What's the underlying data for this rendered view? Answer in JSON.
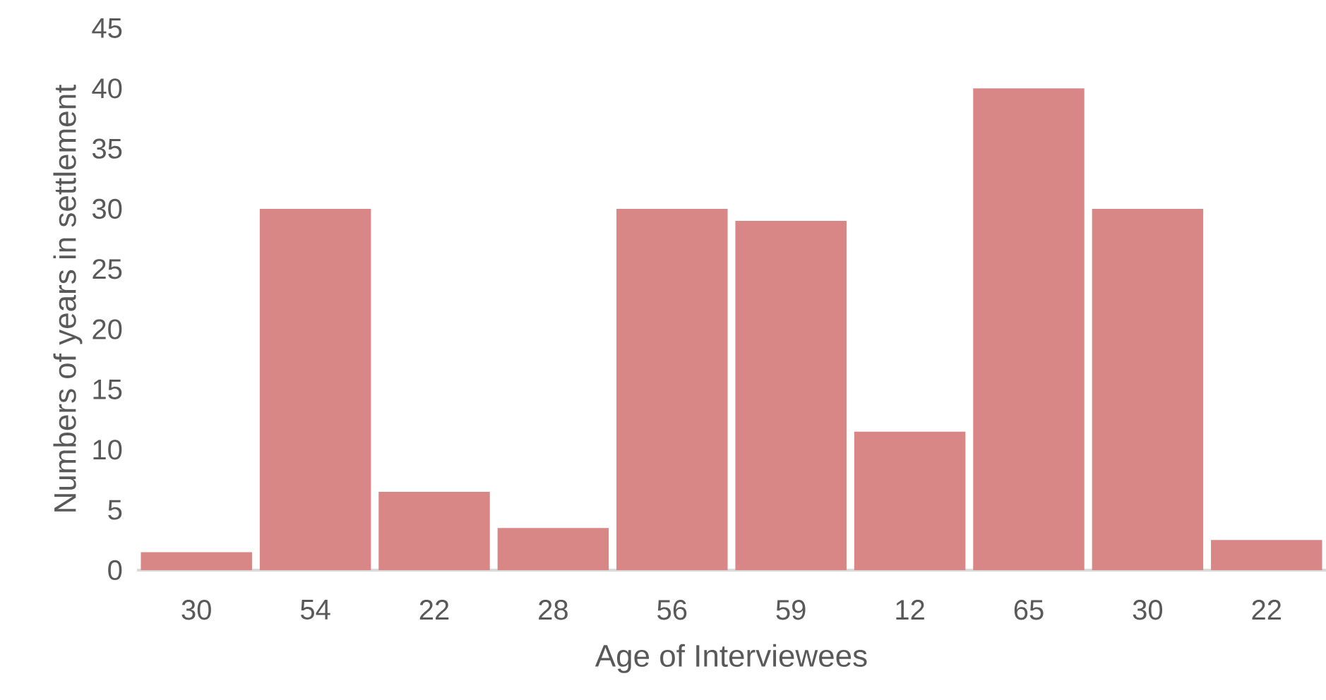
{
  "chart_data": {
    "type": "bar",
    "xlabel": "Age of Interviewees",
    "ylabel": "Numbers of years in settlement",
    "categories": [
      "30",
      "54",
      "22",
      "28",
      "56",
      "59",
      "12",
      "65",
      "30",
      "22"
    ],
    "values": [
      1.5,
      30,
      6.5,
      3.5,
      30,
      29,
      11.5,
      40,
      30,
      2.5
    ],
    "color": "#d88686",
    "ylim": [
      0,
      45
    ],
    "yticks": [
      0,
      5,
      10,
      15,
      20,
      25,
      30,
      35,
      40,
      45
    ],
    "grid": false
  }
}
